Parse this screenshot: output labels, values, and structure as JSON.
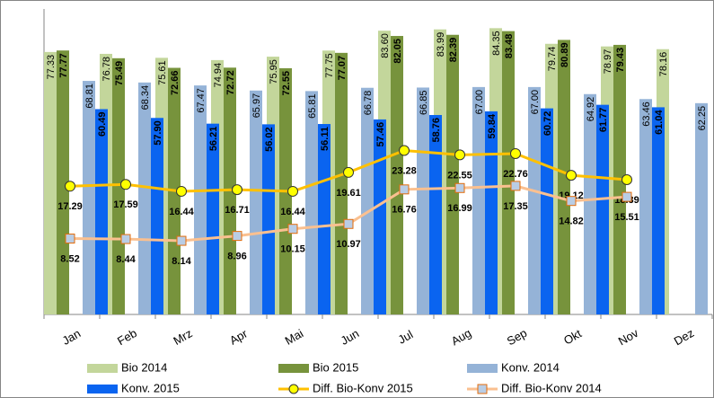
{
  "chart_data": {
    "type": "bar-line",
    "categories": [
      "Jan",
      "Feb",
      "Mrz",
      "Apr",
      "Mai",
      "Jun",
      "Jul",
      "Aug",
      "Sep",
      "Okt",
      "Nov",
      "Dez"
    ],
    "ylim": [
      0,
      90
    ],
    "y2lim": [
      -4.2,
      47
    ],
    "legend": "bottom",
    "series": [
      {
        "name": "Bio 2014",
        "type": "bar",
        "color": "#c3d69b",
        "values": [
          77.33,
          76.78,
          75.61,
          74.94,
          75.95,
          77.75,
          83.6,
          83.99,
          84.35,
          79.74,
          78.97,
          78.16
        ],
        "value_labels": [
          "77.33",
          "76.78",
          "75.61",
          "74.94",
          "75.95",
          "77.75",
          "83.60",
          "83.99",
          "84.35",
          "79.74",
          "78.97",
          "78.16"
        ]
      },
      {
        "name": "Bio 2015",
        "type": "bar",
        "color": "#77933c",
        "values": [
          77.77,
          75.49,
          72.66,
          72.72,
          72.55,
          77.07,
          82.05,
          82.39,
          83.48,
          80.89,
          79.43,
          null
        ],
        "value_labels": [
          "77.77",
          "75.49",
          "72.66",
          "72.72",
          "72.55",
          "77.07",
          "82.05",
          "82.39",
          "83.48",
          "80.89",
          "79.43",
          null
        ]
      },
      {
        "name": "Konv. 2014",
        "type": "bar",
        "color": "#95b3d7",
        "values": [
          68.81,
          68.34,
          67.47,
          65.97,
          65.81,
          66.78,
          66.85,
          67.0,
          67.0,
          64.92,
          63.46,
          62.25
        ],
        "value_labels": [
          "68.81",
          "68.34",
          "67.47",
          "65.97",
          "65.81",
          "66.78",
          "66.85",
          "67.00",
          "67.00",
          "64.92",
          "63.46",
          "62.25"
        ]
      },
      {
        "name": "Konv. 2015",
        "type": "bar",
        "color": "#0a64f0",
        "values": [
          60.49,
          57.9,
          56.21,
          56.02,
          56.11,
          57.46,
          58.76,
          59.84,
          60.72,
          61.77,
          61.04,
          null
        ],
        "value_labels": [
          "60.49",
          "57.90",
          "56.21",
          "56.02",
          "56.11",
          "57.46",
          "58.76",
          "59.84",
          "60.72",
          "61.77",
          "61.04",
          null
        ]
      },
      {
        "name": "Diff. Bio-Konv 2015",
        "type": "line",
        "axis": "y2",
        "color": "#ffc000",
        "marker": "circle",
        "marker_color": "#ffff00",
        "values": [
          17.29,
          17.59,
          16.44,
          16.71,
          16.44,
          19.61,
          23.28,
          22.55,
          22.76,
          19.12,
          18.39,
          null
        ],
        "value_labels": [
          "17.29",
          "17.59",
          "16.44",
          "16.71",
          "16.44",
          "19.61",
          "23.28",
          "22.55",
          "22.76",
          "19.12",
          "18.39",
          null
        ]
      },
      {
        "name": "Diff. Bio-Konv 2014",
        "type": "line",
        "axis": "y2",
        "color": "#fac090",
        "marker": "square",
        "marker_color": "#b9cde5",
        "values": [
          8.52,
          8.44,
          8.14,
          8.96,
          10.15,
          10.97,
          16.76,
          16.99,
          17.35,
          14.82,
          15.51,
          null
        ],
        "value_labels": [
          "8.52",
          "8.44",
          "8.14",
          "8.96",
          "10.15",
          "10.97",
          "16.76",
          "16.99",
          "17.35",
          "14.82",
          "15.51",
          null
        ]
      }
    ]
  }
}
